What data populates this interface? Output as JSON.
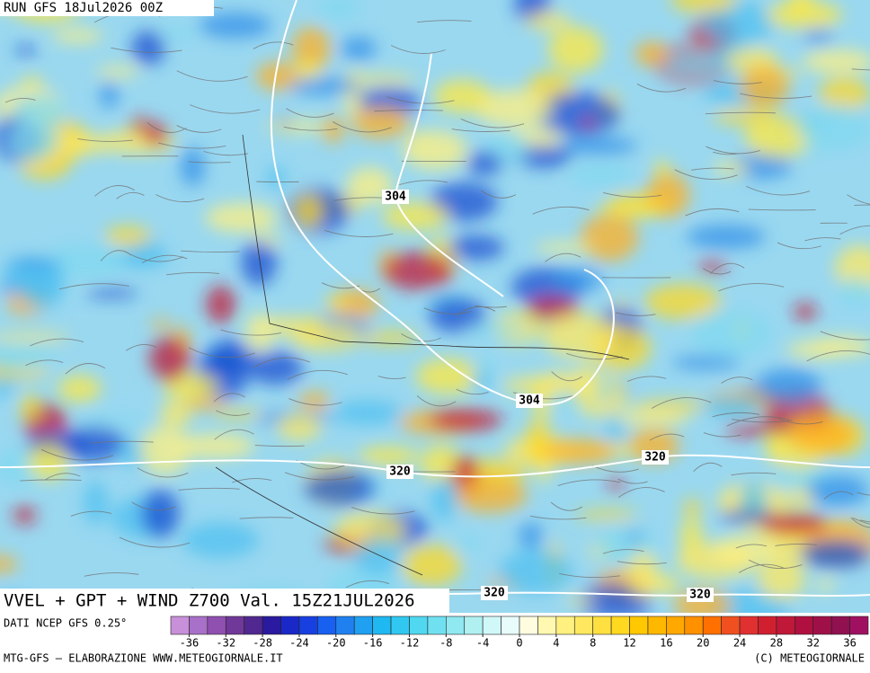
{
  "header": {
    "run": "RUN GFS 18Jul2026 00Z",
    "title": "VVEL + GPT + WIND Z700 Val. 15Z21JUL2026"
  },
  "map": {
    "contour_labels": [
      "304",
      "304",
      "320",
      "320",
      "320",
      "320"
    ]
  },
  "colorbar": {
    "source": "DATI NCEP GFS 0.25°",
    "range": [
      -38,
      38
    ],
    "ticks": [
      -36,
      -32,
      -28,
      -24,
      -20,
      -16,
      -12,
      -8,
      -4,
      0,
      4,
      8,
      12,
      16,
      20,
      24,
      28,
      32,
      36
    ],
    "colors": [
      "#c890d8",
      "#a870c8",
      "#9050b0",
      "#703898",
      "#502890",
      "#2a1aa0",
      "#1a28c8",
      "#1840e0",
      "#1860f0",
      "#2080f0",
      "#20a0f0",
      "#20b8f0",
      "#30c8f0",
      "#50d8f0",
      "#70e0f0",
      "#90e8f0",
      "#b0f0f0",
      "#d0f8f8",
      "#e8fcfc",
      "#fffce0",
      "#fff8b0",
      "#fff080",
      "#ffe860",
      "#ffe040",
      "#ffd820",
      "#ffc800",
      "#ffb800",
      "#ffa800",
      "#ff9000",
      "#ff7000",
      "#f05020",
      "#e03030",
      "#d02030",
      "#c01838",
      "#b01040",
      "#a01048",
      "#901050",
      "#a01060"
    ]
  },
  "footer": {
    "left": "MTG-GFS — ELABORAZIONE WWW.METEOGIORNALE.IT",
    "right": "(C) METEOGIORNALE"
  }
}
